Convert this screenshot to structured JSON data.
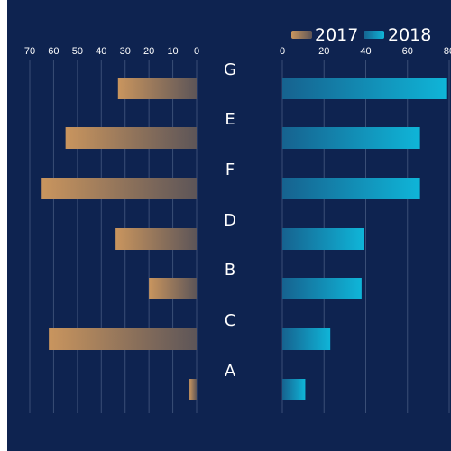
{
  "chart_data": {
    "type": "bar",
    "layout": "butterfly",
    "categories": [
      "G",
      "E",
      "F",
      "D",
      "B",
      "C",
      "A"
    ],
    "series": [
      {
        "name": "2017",
        "values": [
          33,
          55,
          65,
          34,
          20,
          62,
          3
        ],
        "side": "left",
        "xlim": [
          0,
          70
        ]
      },
      {
        "name": "2018",
        "values": [
          79,
          66,
          66,
          39,
          38,
          23,
          11
        ],
        "side": "right",
        "xlim": [
          0,
          80
        ]
      }
    ],
    "left_ticks": [
      "70",
      "60",
      "50",
      "40",
      "30",
      "20",
      "10",
      "0"
    ],
    "right_ticks": [
      "0",
      "20",
      "40",
      "60",
      "80"
    ],
    "legend_position": "top-right",
    "grid": true,
    "colors": {
      "background": "#0e2350",
      "panel_bg": "#ffffff",
      "text": "#ffffff",
      "grid": "#3a4e76",
      "left_start": "#c9955e",
      "left_end": "#5d5558",
      "right_start": "#16628f",
      "right_end": "#0fb5d8"
    }
  }
}
